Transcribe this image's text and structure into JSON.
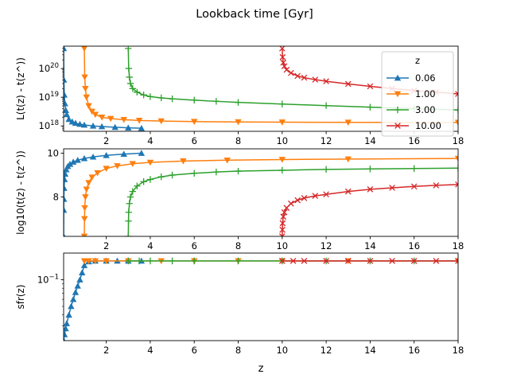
{
  "figure": {
    "title": "Lookback time [Gyr]",
    "xlabel": "z"
  },
  "legend": {
    "title": "z",
    "entries": [
      {
        "label": "0.06",
        "color": "#1f77b4",
        "marker": "triangle-up"
      },
      {
        "label": "1.00",
        "color": "#ff7f0e",
        "marker": "triangle-down"
      },
      {
        "label": "3.00",
        "color": "#2ca02c",
        "marker": "plus"
      },
      {
        "label": "10.00",
        "color": "#d62728",
        "marker": "x"
      }
    ]
  },
  "chart_data": [
    {
      "type": "line",
      "ylabel": "L(t(z) - t(z^))",
      "yscale": "log",
      "xlim": [
        0.06,
        18
      ],
      "ylim": [
        6.5e+17,
        6e+20
      ],
      "xticks": [
        2,
        4,
        6,
        8,
        10,
        12,
        14,
        16,
        18
      ],
      "yticks": [
        {
          "v": 1e+18,
          "label": "10",
          "exp": "18"
        },
        {
          "v": 1e+19,
          "label": "10",
          "exp": "19"
        },
        {
          "v": 1e+20,
          "label": "10",
          "exp": "20"
        }
      ],
      "series": [
        {
          "name": "0.06",
          "x": [
            0.06,
            0.07,
            0.09,
            0.12,
            0.16,
            0.2,
            0.3,
            0.45,
            0.6,
            0.8,
            1.0,
            1.4,
            1.8,
            2.4,
            3.0,
            3.6
          ],
          "y": [
            5e+20,
            4e+19,
            1.2e+19,
            6e+18,
            3.5e+18,
            2.5e+18,
            1.7e+18,
            1.4e+18,
            1.25e+18,
            1.15e+18,
            1.08e+18,
            1e+18,
            9.5e+17,
            9e+17,
            8.6e+17,
            8.3e+17
          ]
        },
        {
          "name": "1.00",
          "x": [
            1.0,
            1.02,
            1.05,
            1.1,
            1.2,
            1.35,
            1.5,
            1.8,
            2.2,
            2.8,
            3.5,
            4.5,
            6,
            8,
            10,
            13,
            18
          ],
          "y": [
            5e+20,
            5e+19,
            2e+19,
            1e+19,
            5e+18,
            3.2e+18,
            2.5e+18,
            2e+18,
            1.8e+18,
            1.65e+18,
            1.55e+18,
            1.48e+18,
            1.42e+18,
            1.38e+18,
            1.35e+18,
            1.33e+18,
            1.32e+18
          ]
        },
        {
          "name": "3.00",
          "x": [
            3.0,
            3.02,
            3.05,
            3.1,
            3.2,
            3.4,
            3.7,
            4.0,
            4.5,
            5.0,
            6,
            7,
            8,
            10,
            12,
            14,
            16,
            18
          ],
          "y": [
            5e+20,
            1e+20,
            5e+19,
            3e+19,
            2e+19,
            1.5e+19,
            1.2e+19,
            1.05e+19,
            9.5e+18,
            8.8e+18,
            7.9e+18,
            7.2e+18,
            6.6e+18,
            5.8e+18,
            5.1e+18,
            4.5e+18,
            4e+18,
            3.6e+18
          ]
        },
        {
          "name": "10.00",
          "x": [
            10.0,
            10.02,
            10.05,
            10.1,
            10.2,
            10.4,
            10.7,
            11.0,
            11.5,
            12,
            13,
            14,
            15,
            16,
            17,
            18
          ],
          "y": [
            5e+20,
            2.5e+20,
            1.6e+20,
            1.2e+20,
            9e+19,
            7e+19,
            5.5e+19,
            4.8e+19,
            4.1e+19,
            3.6e+19,
            2.9e+19,
            2.4e+19,
            2e+19,
            1.7e+19,
            1.5e+19,
            1.3e+19
          ]
        }
      ]
    },
    {
      "type": "line",
      "ylabel": "log10(t(z) - t(z^))",
      "yscale": "linear",
      "xlim": [
        0.06,
        18
      ],
      "ylim": [
        6.2,
        10.2
      ],
      "xticks": [
        2,
        4,
        6,
        8,
        10,
        12,
        14,
        16,
        18
      ],
      "yticks": [
        {
          "v": 8,
          "label": "8"
        },
        {
          "v": 10,
          "label": "10"
        }
      ],
      "series": [
        {
          "name": "0.06",
          "x": [
            0.06,
            0.065,
            0.07,
            0.08,
            0.1,
            0.13,
            0.18,
            0.25,
            0.35,
            0.5,
            0.7,
            1.0,
            1.4,
            2.0,
            2.8,
            3.6
          ],
          "y": [
            6.2,
            7.4,
            7.9,
            8.4,
            8.8,
            9.05,
            9.25,
            9.4,
            9.5,
            9.6,
            9.68,
            9.76,
            9.83,
            9.9,
            9.96,
            10.0
          ]
        },
        {
          "name": "1.00",
          "x": [
            1.0,
            1.01,
            1.02,
            1.05,
            1.1,
            1.2,
            1.35,
            1.6,
            2.0,
            2.5,
            3.2,
            4.0,
            5.5,
            7.5,
            10,
            13,
            18
          ],
          "y": [
            6.2,
            7.0,
            7.5,
            8.0,
            8.35,
            8.65,
            8.9,
            9.1,
            9.3,
            9.42,
            9.52,
            9.58,
            9.64,
            9.68,
            9.71,
            9.73,
            9.76
          ]
        },
        {
          "name": "3.00",
          "x": [
            3.0,
            3.01,
            3.02,
            3.05,
            3.1,
            3.2,
            3.4,
            3.7,
            4.0,
            4.5,
            5.0,
            6,
            7,
            8,
            10,
            12,
            14,
            16,
            18
          ],
          "y": [
            6.2,
            6.9,
            7.3,
            7.7,
            8.0,
            8.25,
            8.5,
            8.7,
            8.8,
            8.92,
            9.0,
            9.08,
            9.14,
            9.18,
            9.22,
            9.26,
            9.28,
            9.3,
            9.32
          ]
        },
        {
          "name": "10.00",
          "x": [
            10.0,
            10.01,
            10.02,
            10.05,
            10.1,
            10.2,
            10.4,
            10.7,
            11.0,
            11.5,
            12,
            13,
            14,
            15,
            16,
            17,
            18
          ],
          "y": [
            6.2,
            6.5,
            6.8,
            7.1,
            7.3,
            7.5,
            7.7,
            7.85,
            7.95,
            8.05,
            8.12,
            8.25,
            8.35,
            8.42,
            8.48,
            8.53,
            8.57
          ]
        }
      ]
    },
    {
      "type": "line",
      "ylabel": "sfr(z)",
      "yscale": "log",
      "xlim": [
        0.06,
        18
      ],
      "ylim": [
        0.0205,
        0.2
      ],
      "xticks": [
        2,
        4,
        6,
        8,
        10,
        12,
        14,
        16,
        18
      ],
      "yticks": [
        {
          "v": 0.1,
          "label": "10",
          "exp": "−1"
        }
      ],
      "series": [
        {
          "name": "0.06",
          "x": [
            0.06,
            0.1,
            0.15,
            0.2,
            0.3,
            0.4,
            0.5,
            0.6,
            0.7,
            0.8,
            0.9,
            1.0,
            1.2,
            1.5,
            2.0,
            2.5,
            3.0,
            3.6
          ],
          "y": [
            0.0205,
            0.024,
            0.028,
            0.032,
            0.04,
            0.05,
            0.06,
            0.072,
            0.085,
            0.1,
            0.12,
            0.145,
            0.16,
            0.163,
            0.163,
            0.163,
            0.163,
            0.163
          ]
        },
        {
          "name": "1.00",
          "x": [
            1.0,
            1.2,
            1.5,
            2.0,
            3.0,
            4.5,
            6,
            8,
            10,
            13,
            18
          ],
          "y": [
            0.163,
            0.163,
            0.163,
            0.163,
            0.163,
            0.163,
            0.163,
            0.163,
            0.163,
            0.163,
            0.163
          ]
        },
        {
          "name": "3.00",
          "x": [
            3.0,
            3.5,
            4.0,
            5.0,
            6,
            8,
            10,
            12,
            14,
            16,
            18
          ],
          "y": [
            0.163,
            0.163,
            0.163,
            0.163,
            0.163,
            0.163,
            0.163,
            0.163,
            0.163,
            0.163,
            0.163
          ]
        },
        {
          "name": "10.00",
          "x": [
            10.0,
            10.5,
            11,
            12,
            13,
            14,
            15,
            16,
            17,
            18
          ],
          "y": [
            0.163,
            0.163,
            0.163,
            0.163,
            0.163,
            0.163,
            0.163,
            0.163,
            0.163,
            0.163
          ]
        }
      ]
    }
  ]
}
